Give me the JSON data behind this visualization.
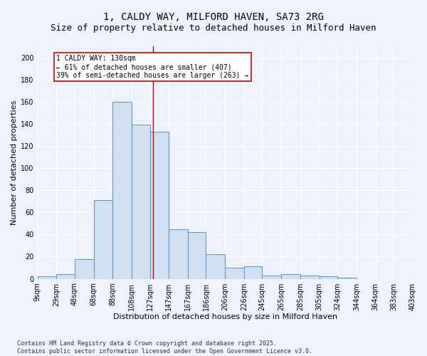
{
  "title": "1, CALDY WAY, MILFORD HAVEN, SA73 2RG",
  "subtitle": "Size of property relative to detached houses in Milford Haven",
  "xlabel": "Distribution of detached houses by size in Milford Haven",
  "ylabel": "Number of detached properties",
  "bin_labels": [
    "9sqm",
    "29sqm",
    "48sqm",
    "68sqm",
    "88sqm",
    "108sqm",
    "127sqm",
    "147sqm",
    "167sqm",
    "186sqm",
    "206sqm",
    "226sqm",
    "245sqm",
    "265sqm",
    "285sqm",
    "305sqm",
    "324sqm",
    "344sqm",
    "364sqm",
    "383sqm",
    "403sqm"
  ],
  "bins": [
    9,
    29,
    48,
    68,
    88,
    108,
    127,
    147,
    167,
    186,
    206,
    226,
    245,
    265,
    285,
    305,
    324,
    344,
    364,
    383,
    403
  ],
  "bar_values": [
    2,
    4,
    18,
    71,
    160,
    139,
    133,
    45,
    42,
    22,
    10,
    11,
    3,
    4,
    3,
    2,
    1,
    0,
    0,
    0
  ],
  "bar_color": "#cfe0f2",
  "bar_edge_color": "#5b8dc8",
  "vline_x": 130,
  "vline_color": "#cc0000",
  "annotation_line1": "1 CALDY WAY: 130sqm",
  "annotation_line2": "← 61% of detached houses are smaller (407)",
  "annotation_line3": "39% of semi-detached houses are larger (263) →",
  "annotation_box_color": "#cc0000",
  "annotation_bg": "#ffffff",
  "ylim": [
    0,
    210
  ],
  "yticks": [
    0,
    20,
    40,
    60,
    80,
    100,
    120,
    140,
    160,
    180,
    200
  ],
  "footer_text": "Contains HM Land Registry data © Crown copyright and database right 2025.\nContains public sector information licensed under the Open Government Licence v3.0.",
  "bg_color": "#eef2fb",
  "grid_color": "#ffffff",
  "title_fontsize": 10,
  "subtitle_fontsize": 9,
  "axis_label_fontsize": 8,
  "tick_fontsize": 7,
  "annotation_fontsize": 7,
  "footer_fontsize": 6
}
